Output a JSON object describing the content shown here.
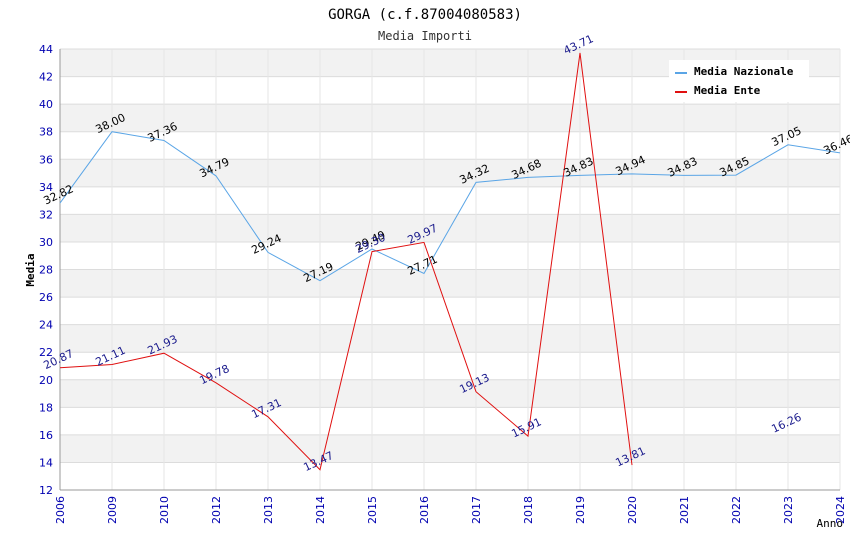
{
  "chart_data": {
    "type": "line",
    "title": "GORGA (c.f.87004080583)",
    "subtitle": "Media Importi",
    "xlabel": "Anno",
    "ylabel": "Media",
    "ylim": [
      12,
      44
    ],
    "yticks": [
      "12",
      "14",
      "16",
      "18",
      "20",
      "22",
      "24",
      "26",
      "28",
      "30",
      "32",
      "34",
      "36",
      "38",
      "40",
      "42",
      "44"
    ],
    "categories": [
      "2006",
      "2009",
      "2010",
      "2012",
      "2013",
      "2014",
      "2015",
      "2016",
      "2017",
      "2018",
      "2019",
      "2020",
      "2021",
      "2022",
      "2023",
      "2024"
    ],
    "legend_position": "top-right",
    "series": [
      {
        "name": "Media Nazionale",
        "color": "#5aa5e6",
        "label_color": "#000000",
        "values": [
          32.82,
          38.0,
          37.36,
          34.79,
          29.24,
          27.19,
          29.49,
          27.71,
          34.32,
          34.68,
          34.83,
          34.94,
          34.83,
          34.85,
          37.05,
          36.46
        ],
        "labels": [
          "32.82",
          "38.00",
          "37.36",
          "34.79",
          "29.24",
          "27.19",
          "29.49",
          "27.71",
          "34.32",
          "34.68",
          "34.83",
          "34.94",
          "34.83",
          "34.85",
          "37.05",
          "36.46"
        ]
      },
      {
        "name": "Media Ente",
        "color": "#e01010",
        "label_color": "#1a1a8c",
        "values": [
          20.87,
          21.11,
          21.93,
          19.78,
          17.31,
          13.47,
          29.3,
          29.97,
          19.13,
          15.91,
          43.71,
          13.81,
          null,
          null,
          16.26,
          null
        ],
        "labels": [
          "20.87",
          "21.11",
          "21.93",
          "19.78",
          "17.31",
          "13.47",
          "29.30",
          "29.97",
          "19.13",
          "15.91",
          "43.71",
          "13.81",
          "",
          "",
          "16.26",
          ""
        ]
      }
    ]
  }
}
